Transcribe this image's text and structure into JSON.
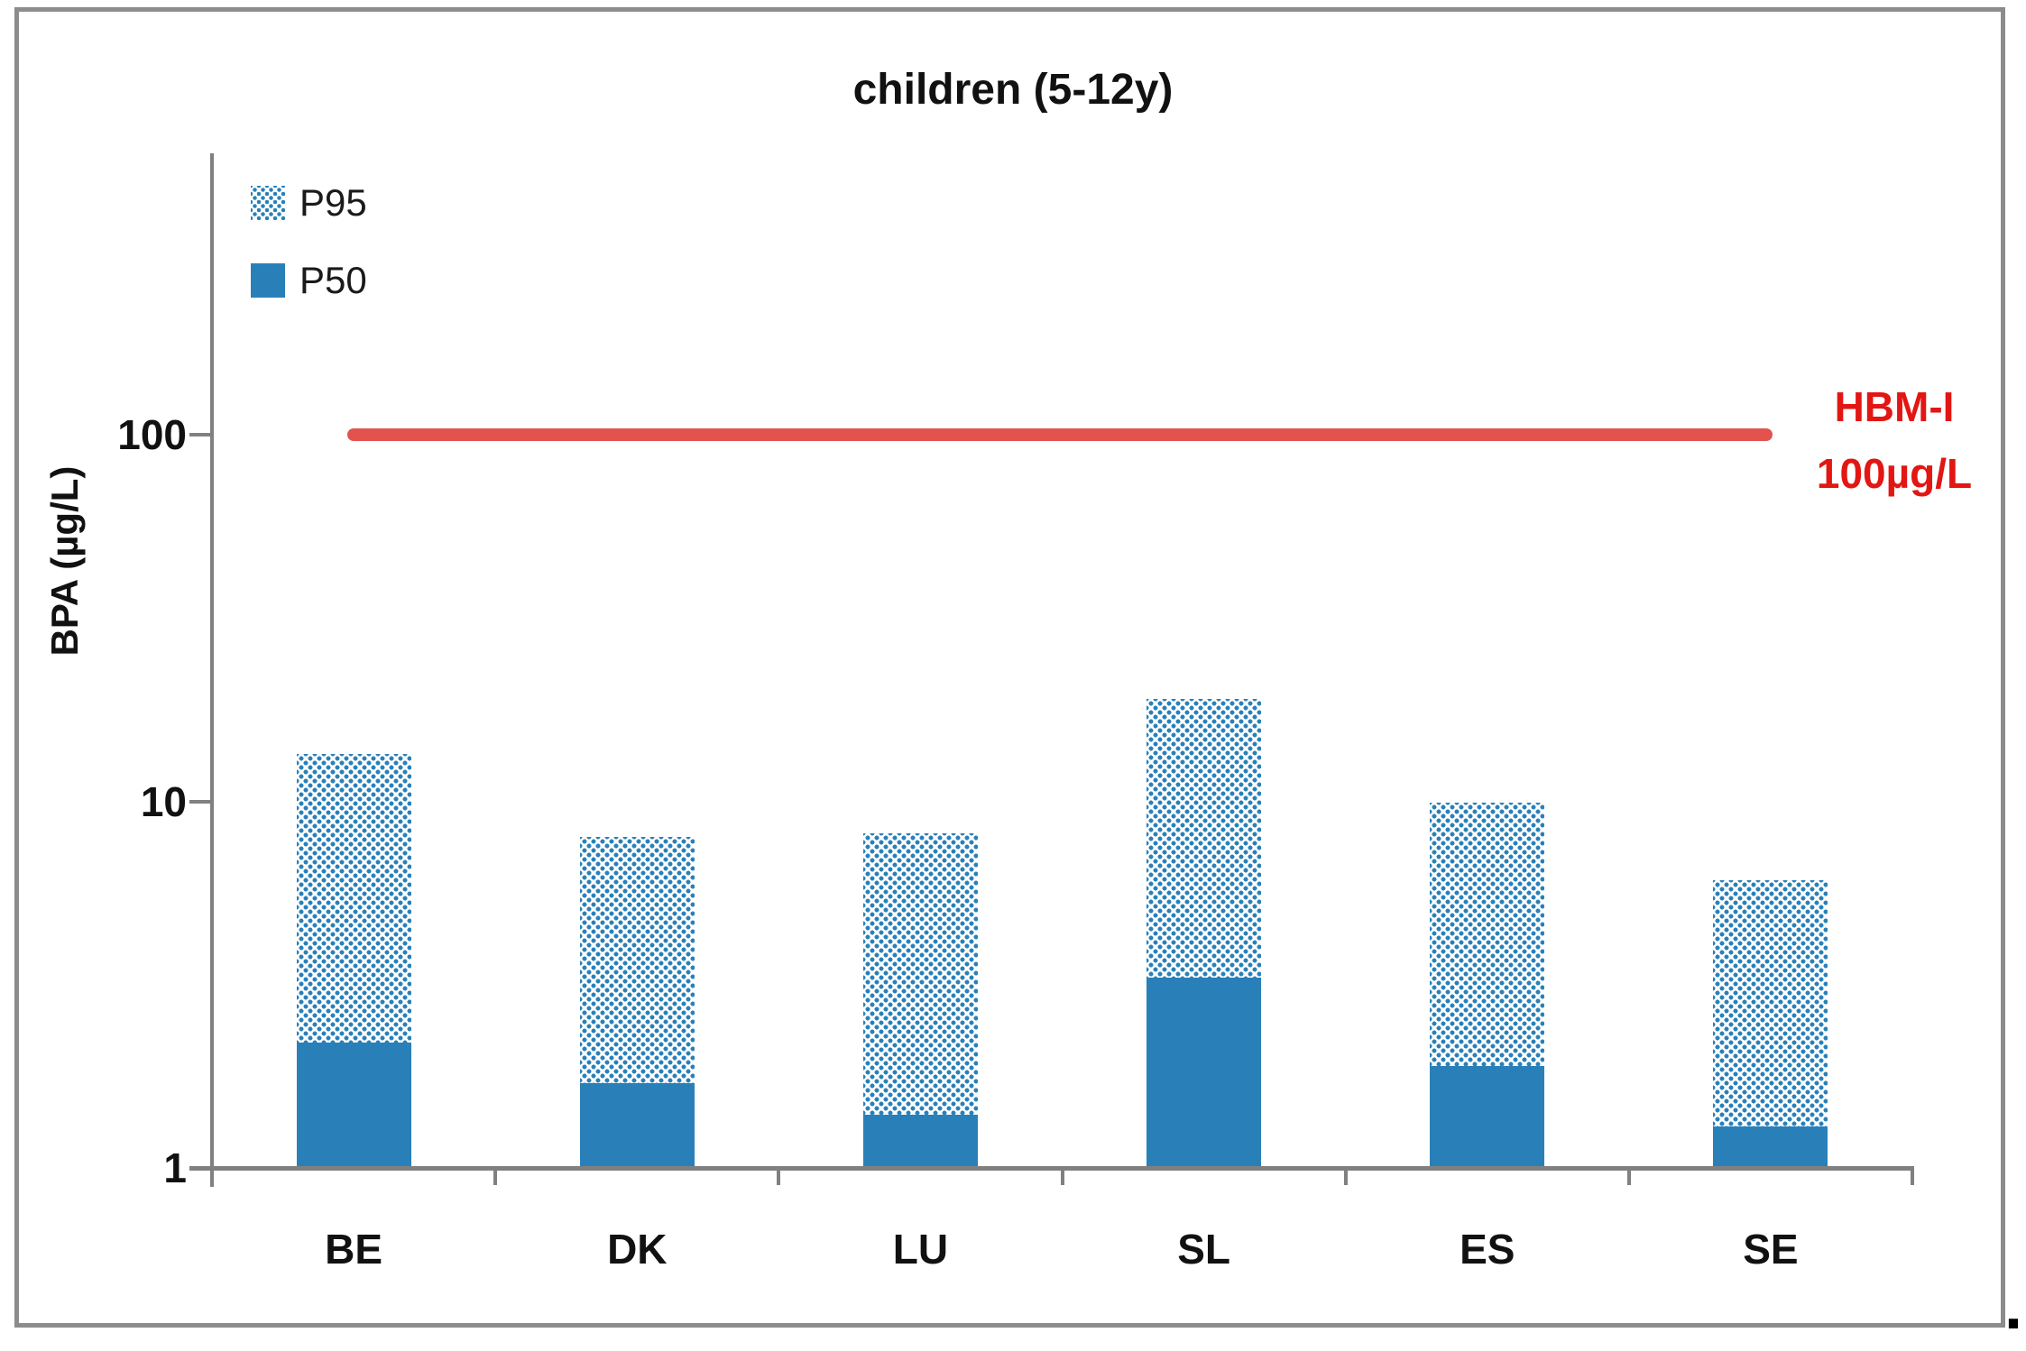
{
  "figure": {
    "title": "children (5-12y)",
    "trailing_period": "."
  },
  "legend": {
    "position": "top-left",
    "items": [
      {
        "label": "P95",
        "swatch": "dotted"
      },
      {
        "label": "P50",
        "swatch": "solid"
      }
    ]
  },
  "axes": {
    "y_title": "BPA (µg/L)",
    "y_scale": "log",
    "y_tick_labels": [
      "100",
      "10",
      "1"
    ],
    "x_tick_labels": [
      "BE",
      "DK",
      "LU",
      "SL",
      "ES",
      "SE"
    ]
  },
  "annotation": {
    "line1": "HBM-I",
    "line2": "100µg/L"
  },
  "colors": {
    "bar_blue": "#2980B9",
    "reference_line_red": "#E2534D",
    "annotation_text_red": "#E21613",
    "axis_gray": "#808080",
    "frame_gray": "#8C8C8C"
  },
  "chart_data": {
    "type": "bar",
    "title": "children (5-12y)",
    "xlabel": "",
    "ylabel": "BPA (µg/L)",
    "y_scale": "log",
    "ylim": [
      1,
      600
    ],
    "y_ticks": [
      1,
      10,
      100
    ],
    "grid": false,
    "legend_position": "top-left",
    "categories": [
      "BE",
      "DK",
      "LU",
      "SL",
      "ES",
      "SE"
    ],
    "series": [
      {
        "name": "P50",
        "style": "solid",
        "values": [
          2.2,
          1.7,
          1.4,
          3.3,
          1.9,
          1.3
        ]
      },
      {
        "name": "P95",
        "style": "dotted",
        "values": [
          13.5,
          8.0,
          8.2,
          19.0,
          9.9,
          6.1
        ]
      }
    ],
    "reference_line": {
      "label": "HBM-I 100µg/L",
      "value": 100
    }
  }
}
